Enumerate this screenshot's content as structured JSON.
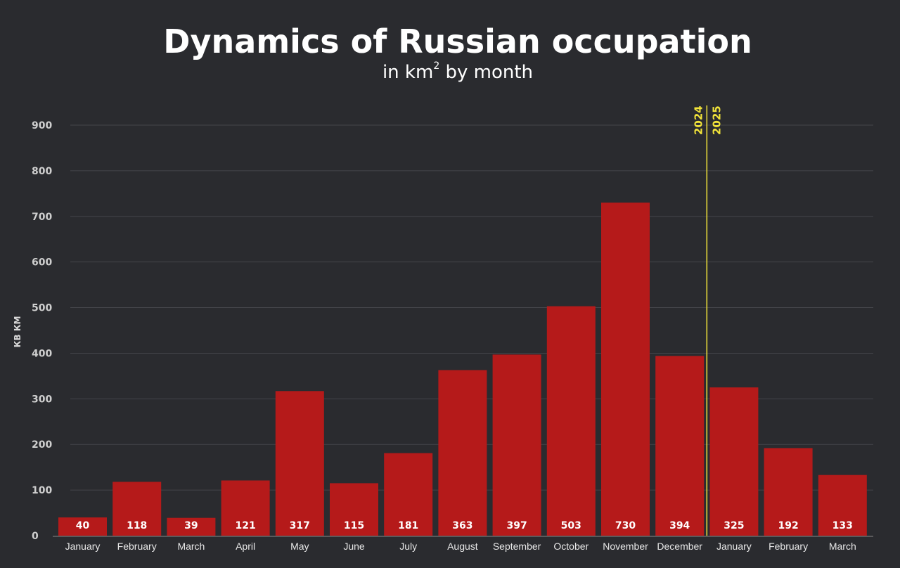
{
  "chart_data": {
    "type": "bar",
    "title": "Dynamics of Russian occupation",
    "subtitle_prefix": "in km",
    "subtitle_sup": "2",
    "subtitle_suffix": " by month",
    "xlabel": "",
    "ylabel": "КВ КМ",
    "ylim": [
      0,
      900
    ],
    "yticks": [
      0,
      100,
      200,
      300,
      400,
      500,
      600,
      700,
      800,
      900
    ],
    "grid": true,
    "categories": [
      "January",
      "February",
      "March",
      "April",
      "May",
      "June",
      "July",
      "August",
      "September",
      "October",
      "November",
      "December",
      "January",
      "February",
      "March"
    ],
    "values": [
      40,
      118,
      39,
      121,
      317,
      115,
      181,
      363,
      397,
      503,
      730,
      394,
      325,
      192,
      133
    ],
    "year_divider": {
      "after_index": 11,
      "left_label": "2024",
      "right_label": "2025"
    },
    "colors": {
      "bar": "#b51a1a",
      "background": "#2a2b2f",
      "grid": "#44454a",
      "divider": "#f2e43a"
    }
  }
}
